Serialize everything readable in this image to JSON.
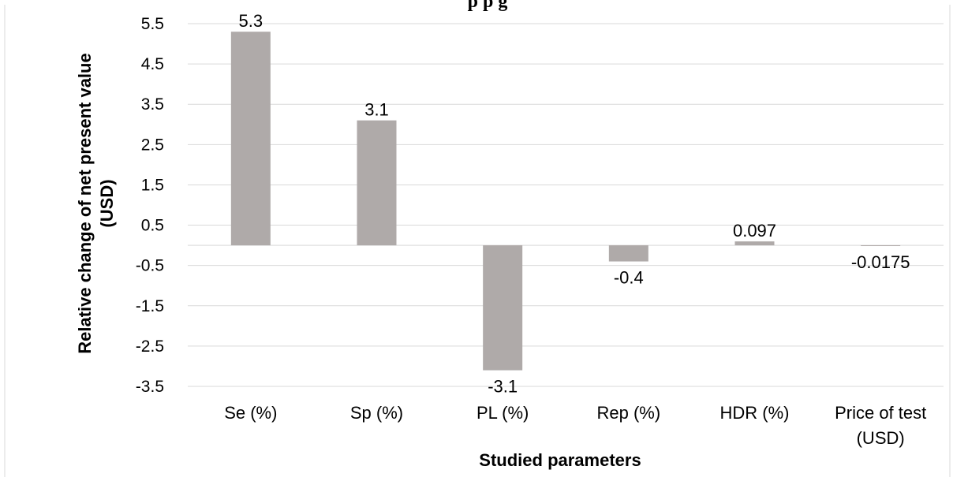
{
  "chart_data": {
    "type": "bar",
    "title_fragment": "p        p  g",
    "categories": [
      "Se (%)",
      "Sp (%)",
      "PL (%)",
      "Rep (%)",
      "HDR (%)",
      "Price of test (USD)"
    ],
    "category_lines": [
      [
        "Se (%)"
      ],
      [
        "Sp (%)"
      ],
      [
        "PL (%)"
      ],
      [
        "Rep (%)"
      ],
      [
        "HDR (%)"
      ],
      [
        "Price of test",
        "(USD)"
      ]
    ],
    "values": [
      5.3,
      3.1,
      -3.1,
      -0.4,
      0.097,
      -0.0175
    ],
    "data_labels": [
      "5.3",
      "3.1",
      "-3.1",
      "-0.4",
      "0.097",
      "-0.0175"
    ],
    "xlabel": "Studied parameters",
    "ylabel_lines": [
      "Relative change of net present value",
      "(USD)"
    ],
    "ylim": [
      -3.5,
      5.5
    ],
    "yticks": [
      5.5,
      4.5,
      3.5,
      2.5,
      1.5,
      0.5,
      -0.5,
      -1.5,
      -2.5,
      -3.5
    ],
    "ytick_labels": [
      "5.5",
      "4.5",
      "3.5",
      "2.5",
      "1.5",
      "0.5",
      "-0.5",
      "-1.5",
      "-2.5",
      "-3.5"
    ],
    "grid": true,
    "legend": "none",
    "colors": {
      "bar": "#afaaa9",
      "grid": "#d9d9d9",
      "baseline": "#d9d9d9"
    }
  }
}
